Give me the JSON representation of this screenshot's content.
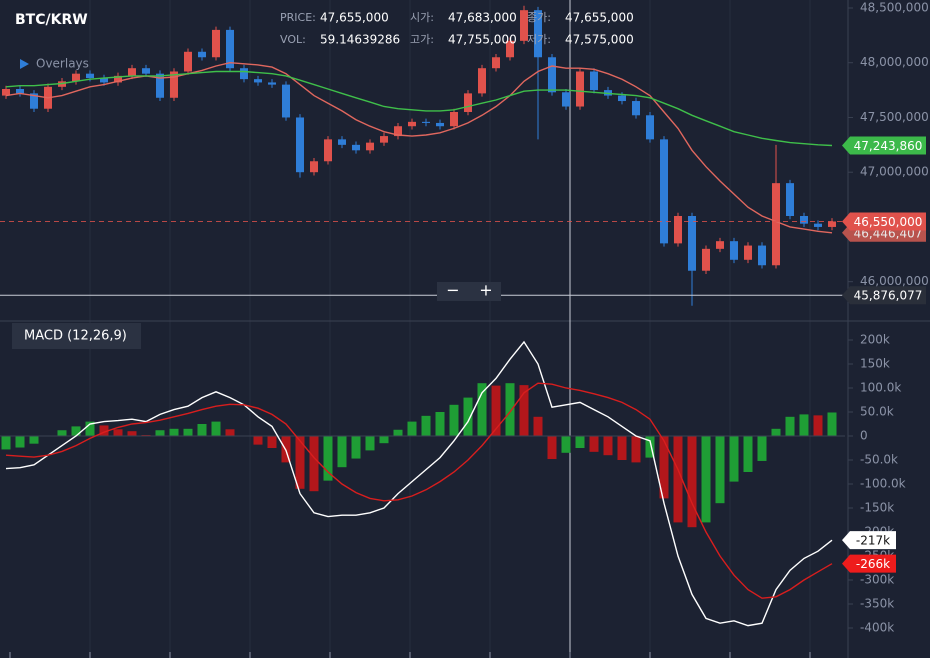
{
  "chart_data": [
    {
      "type": "candlestick",
      "title": "BTC/KRW",
      "overlays_label": "Overlays",
      "zoom": [
        "−",
        "+"
      ],
      "info": [
        {
          "label": "PRICE:",
          "value": "47,655,000"
        },
        {
          "label": "시가:",
          "value": "47,683,000"
        },
        {
          "label": "종가:",
          "value": "47,655,000"
        },
        {
          "label": "VOL:",
          "value": "59.14639286"
        },
        {
          "label": "고가:",
          "value": "47,755,000"
        },
        {
          "label": "저가:",
          "value": "47,575,000"
        }
      ],
      "up_color": "#e0524c",
      "down_color": "#2f7ed8",
      "ylim": [
        45650000,
        48573000
      ],
      "yticks": [
        {
          "value": 48500000,
          "label": "48,500,000"
        },
        {
          "value": 48000000,
          "label": "48,000,000"
        },
        {
          "value": 47500000,
          "label": "47,500,000"
        },
        {
          "value": 47000000,
          "label": "47,000,000"
        },
        {
          "value": 46000000,
          "label": "46,000,000"
        }
      ],
      "candles": {
        "open": [
          47700000,
          47760000,
          47720000,
          47580000,
          47780000,
          47830000,
          47900000,
          47860000,
          47820000,
          47880000,
          47950000,
          47900000,
          47680000,
          47920000,
          48100000,
          48050000,
          48300000,
          47950000,
          47850000,
          47820000,
          47800000,
          47500000,
          47000000,
          47100000,
          47300000,
          47250000,
          47200000,
          47270000,
          47330000,
          47420000,
          47460000,
          47450000,
          47420000,
          47550000,
          47720000,
          47950000,
          48050000,
          48200000,
          48480000,
          48050000,
          47730000,
          47600000,
          47920000,
          47750000,
          47700000,
          47650000,
          47520000,
          47300000,
          46350000,
          46600000,
          46100000,
          46300000,
          46370000,
          46200000,
          46330000,
          46150000,
          46900000,
          46600000,
          46530000,
          46500000
        ],
        "high": [
          47790000,
          47790000,
          47750000,
          47810000,
          47860000,
          47930000,
          47930000,
          47890000,
          47910000,
          47980000,
          47980000,
          47930000,
          47950000,
          48130000,
          48130000,
          48330000,
          48330000,
          47980000,
          47880000,
          47850000,
          47830000,
          47530000,
          47130000,
          47330000,
          47330000,
          47280000,
          47300000,
          47360000,
          47450000,
          47490000,
          47490000,
          47480000,
          47580000,
          47750000,
          47980000,
          48080000,
          48230000,
          48520000,
          48510000,
          48080000,
          47760000,
          47950000,
          47950000,
          47780000,
          47730000,
          47680000,
          47550000,
          47330000,
          46630000,
          46630000,
          46330000,
          46400000,
          46400000,
          46360000,
          46360000,
          47250000,
          46930000,
          46630000,
          46560000,
          46580000
        ],
        "low": [
          47670000,
          47690000,
          47550000,
          47550000,
          47750000,
          47800000,
          47830000,
          47790000,
          47790000,
          47850000,
          47870000,
          47650000,
          47650000,
          47890000,
          48020000,
          48020000,
          47920000,
          47820000,
          47790000,
          47770000,
          47470000,
          46950000,
          46970000,
          47070000,
          47220000,
          47170000,
          47170000,
          47240000,
          47300000,
          47390000,
          47420000,
          47390000,
          47390000,
          47520000,
          47690000,
          47920000,
          48020000,
          48170000,
          47300000,
          47700000,
          47570000,
          47570000,
          47720000,
          47670000,
          47620000,
          47490000,
          47270000,
          46320000,
          46320000,
          45780000,
          46070000,
          46270000,
          46170000,
          46170000,
          46120000,
          46120000,
          46570000,
          46500000,
          46470000,
          46470000
        ],
        "close": [
          47760000,
          47720000,
          47580000,
          47780000,
          47830000,
          47900000,
          47860000,
          47820000,
          47880000,
          47950000,
          47900000,
          47680000,
          47920000,
          48100000,
          48050000,
          48300000,
          47950000,
          47850000,
          47820000,
          47800000,
          47500000,
          47000000,
          47100000,
          47300000,
          47250000,
          47200000,
          47270000,
          47330000,
          47420000,
          47460000,
          47450000,
          47420000,
          47550000,
          47720000,
          47950000,
          48050000,
          48200000,
          48480000,
          48050000,
          47730000,
          47600000,
          47920000,
          47750000,
          47700000,
          47650000,
          47520000,
          47300000,
          46350000,
          46600000,
          46100000,
          46300000,
          46370000,
          46200000,
          46330000,
          46150000,
          46900000,
          46600000,
          46530000,
          46500000,
          46550000
        ]
      },
      "series": [
        {
          "color": "#e0675e",
          "values": [
            47700000,
            47720000,
            47700000,
            47680000,
            47700000,
            47740000,
            47780000,
            47800000,
            47830000,
            47860000,
            47880000,
            47860000,
            47870000,
            47900000,
            47930000,
            47970000,
            48000000,
            47990000,
            47980000,
            47960000,
            47900000,
            47800000,
            47700000,
            47630000,
            47560000,
            47480000,
            47420000,
            47370000,
            47340000,
            47330000,
            47340000,
            47360000,
            47400000,
            47450000,
            47520000,
            47600000,
            47700000,
            47830000,
            47920000,
            47970000,
            47950000,
            47950000,
            47940000,
            47900000,
            47850000,
            47780000,
            47700000,
            47550000,
            47400000,
            47200000,
            47050000,
            46920000,
            46800000,
            46680000,
            46600000,
            46550000,
            46500000,
            46480000,
            46460000,
            46446407
          ]
        },
        {
          "color": "#3fbf4a",
          "values": [
            47780000,
            47790000,
            47790000,
            47800000,
            47810000,
            47830000,
            47850000,
            47860000,
            47870000,
            47880000,
            47880000,
            47880000,
            47890000,
            47900000,
            47910000,
            47920000,
            47920000,
            47920000,
            47910000,
            47900000,
            47880000,
            47840000,
            47800000,
            47760000,
            47720000,
            47680000,
            47640000,
            47600000,
            47580000,
            47570000,
            47560000,
            47560000,
            47570000,
            47600000,
            47630000,
            47660000,
            47700000,
            47740000,
            47750000,
            47750000,
            47750000,
            47740000,
            47730000,
            47720000,
            47710000,
            47700000,
            47680000,
            47630000,
            47580000,
            47520000,
            47470000,
            47420000,
            47370000,
            47340000,
            47310000,
            47290000,
            47270000,
            47260000,
            47250000,
            47243860
          ]
        }
      ],
      "tags": [
        {
          "value": 47243860,
          "label": "47,243,860",
          "color": "#3cb94a",
          "text_color": "#ffffff"
        },
        {
          "value": 46446407,
          "label": "46,446,407",
          "color": "#b8534d",
          "text_color": "#e8e8e8"
        },
        {
          "value": 46550000,
          "label": "46,550,000",
          "color": "#e0524c",
          "text_color": "#ffffff",
          "dashed": true
        },
        {
          "value": 45876077,
          "label": "45,876,077",
          "color": "#2a2f3a",
          "text_color": "#ffffff",
          "crosshair": true
        }
      ]
    },
    {
      "type": "macd",
      "title": "MACD (12,26,9)",
      "ylim": [
        -462.5,
        237.5
      ],
      "yticks": [
        {
          "value": 200,
          "label": "200k"
        },
        {
          "value": 150,
          "label": "150k"
        },
        {
          "value": 100,
          "label": "100.0k"
        },
        {
          "value": 50,
          "label": "50.0k"
        },
        0,
        {
          "value": -50,
          "label": "-50.0k"
        },
        {
          "value": -100,
          "label": "-100.0k"
        },
        {
          "value": -150,
          "label": "-150k"
        },
        {
          "value": -200,
          "label": "-200k"
        },
        {
          "value": -250,
          "label": "-250k"
        },
        {
          "value": -300,
          "label": "-300k"
        },
        {
          "value": -350,
          "label": "-350k"
        },
        {
          "value": -400,
          "label": "-400k"
        }
      ],
      "histogram": {
        "up_color": "#1f9e35",
        "down_color": "#b3171b",
        "values": [
          -28,
          -24,
          -16,
          0,
          12,
          20,
          30,
          22,
          14,
          10,
          2,
          12,
          15,
          15,
          25,
          30,
          14,
          0,
          -18,
          -25,
          -55,
          -110,
          -115,
          -93,
          -65,
          -47,
          -30,
          -15,
          13,
          30,
          42,
          50,
          65,
          80,
          110,
          105,
          110,
          106,
          40,
          -48,
          -35,
          -25,
          -33,
          -40,
          -50,
          -55,
          -45,
          -130,
          -180,
          -190,
          -180,
          -140,
          -95,
          -75,
          -52,
          15,
          40,
          45,
          43,
          49
        ]
      },
      "series": [
        {
          "color": "#ffffff",
          "values": [
            -68,
            -66,
            -60,
            -40,
            -20,
            0,
            25,
            30,
            32,
            35,
            30,
            45,
            55,
            62,
            80,
            92,
            80,
            65,
            40,
            20,
            -30,
            -120,
            -160,
            -168,
            -165,
            -165,
            -160,
            -150,
            -120,
            -95,
            -70,
            -45,
            -10,
            30,
            90,
            120,
            160,
            196,
            150,
            60,
            65,
            70,
            55,
            40,
            20,
            0,
            -10,
            -140,
            -250,
            -330,
            -380,
            -390,
            -385,
            -395,
            -390,
            -320,
            -280,
            -255,
            -240,
            -217
          ]
        },
        {
          "color": "#d81e1e",
          "values": [
            -40,
            -42,
            -44,
            -40,
            -32,
            -20,
            -5,
            8,
            18,
            25,
            28,
            33,
            40,
            47,
            55,
            62,
            66,
            65,
            58,
            45,
            25,
            -10,
            -45,
            -75,
            -100,
            -118,
            -130,
            -135,
            -133,
            -125,
            -112,
            -95,
            -75,
            -50,
            -20,
            15,
            50,
            90,
            110,
            108,
            100,
            95,
            88,
            80,
            70,
            55,
            35,
            -10,
            -70,
            -140,
            -200,
            -250,
            -290,
            -320,
            -338,
            -335,
            -320,
            -300,
            -283,
            -266
          ]
        }
      ],
      "tags": [
        {
          "value": -217,
          "label": "-217k",
          "color": "#ffffff",
          "text_color": "#111111"
        },
        {
          "value": -266,
          "label": "-266k",
          "color": "#ee1c1c",
          "text_color": "#ffffff"
        }
      ]
    }
  ]
}
